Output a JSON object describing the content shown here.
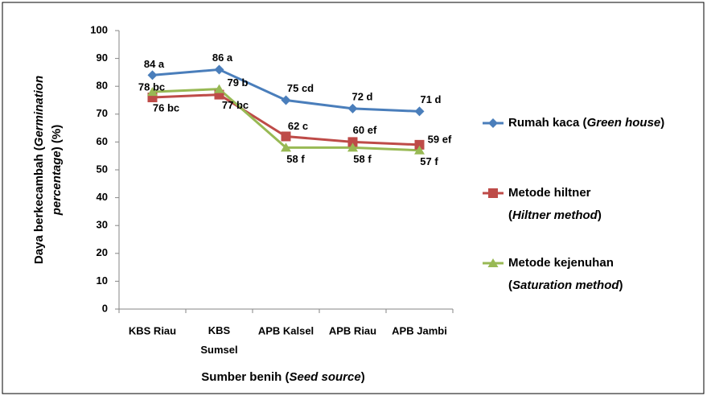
{
  "chart_data": {
    "type": "line",
    "xlabel": "Sumber benih (Seed source)",
    "ylabel": "Daya berkecambah (Germination percentage) (%)",
    "categories": [
      "KBS Riau",
      "KBS Sumsel",
      "APB Kalsel",
      "APB Riau",
      "APB Jambi"
    ],
    "series": [
      {
        "name": "Rumah kaca (Green house)",
        "color": "#4a7ebb",
        "marker": "diamond",
        "values": [
          84,
          86,
          75,
          72,
          71
        ],
        "value_labels": [
          "84 a",
          "86 a",
          "75 cd",
          "72 d",
          "71 d"
        ]
      },
      {
        "name": "Metode hiltner (Hiltner method)",
        "color": "#be4b48",
        "marker": "square",
        "values": [
          76,
          77,
          62,
          60,
          59
        ],
        "value_labels": [
          "76 bc",
          "77 bc",
          "62 c",
          "60 ef",
          "59 ef"
        ]
      },
      {
        "name": "Metode kejenuhan (Saturation method)",
        "color": "#98b954",
        "marker": "triangle",
        "values": [
          78,
          79,
          58,
          58,
          57
        ],
        "value_labels": [
          "78 bc",
          "79 b",
          "58 f",
          "58 f",
          "57 f"
        ]
      }
    ],
    "ylim": [
      0,
      100
    ],
    "yticks": [
      0,
      10,
      20,
      30,
      40,
      50,
      60,
      70,
      80,
      90,
      100
    ],
    "legend": "right"
  }
}
